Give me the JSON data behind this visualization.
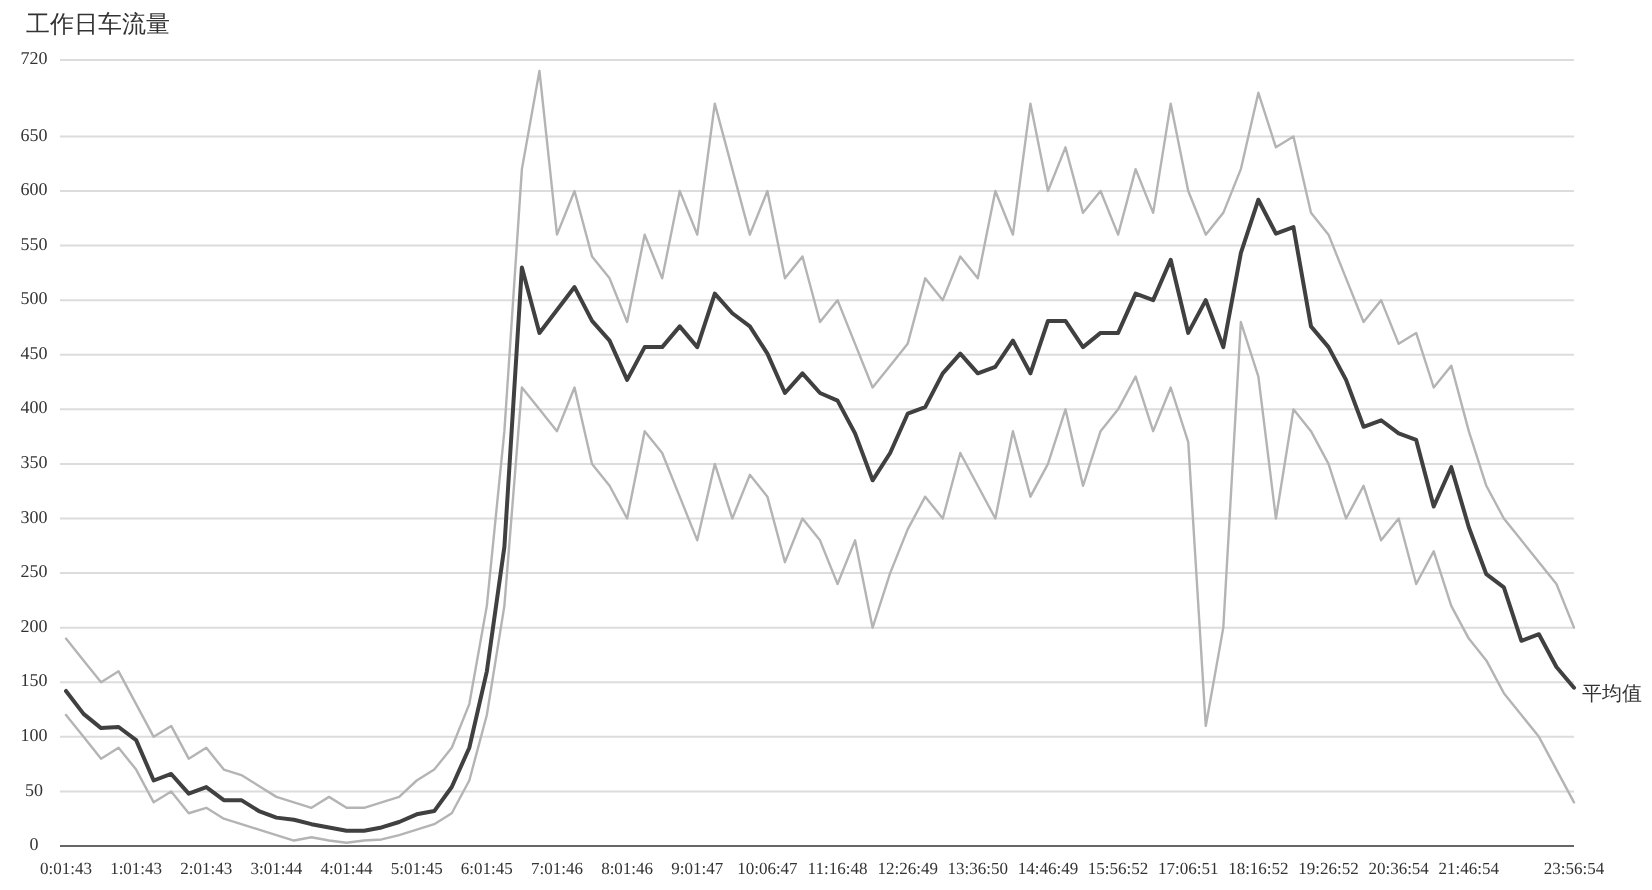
{
  "chart_data": {
    "type": "line",
    "ylabel": "工作日车流量",
    "ylim": [
      0,
      720
    ],
    "yticks": [
      0,
      50,
      100,
      150,
      200,
      250,
      300,
      350,
      400,
      450,
      500,
      550,
      600,
      650,
      720
    ],
    "grid": "y",
    "marker": "none",
    "line_style": "solid",
    "categories": [
      "0:01:43",
      null,
      null,
      null,
      "1:01:43",
      null,
      null,
      null,
      "2:01:43",
      null,
      null,
      null,
      "3:01:44",
      null,
      null,
      null,
      "4:01:44",
      null,
      null,
      null,
      "5:01:45",
      null,
      null,
      null,
      "6:01:45",
      null,
      null,
      null,
      "7:01:46",
      null,
      null,
      null,
      "8:01:46",
      null,
      null,
      null,
      "9:01:47",
      null,
      null,
      null,
      "10:06:47",
      null,
      null,
      null,
      "11:16:48",
      null,
      null,
      null,
      "12:26:49",
      null,
      null,
      null,
      "13:36:50",
      null,
      null,
      null,
      "14:46:49",
      null,
      null,
      null,
      "15:56:52",
      null,
      null,
      null,
      "17:06:51",
      null,
      null,
      null,
      "18:16:52",
      null,
      null,
      null,
      "19:26:52",
      null,
      null,
      null,
      "20:36:54",
      null,
      null,
      null,
      "21:46:54",
      null,
      null,
      null,
      null,
      null,
      "23:56:54"
    ],
    "series": [
      {
        "color": "#b4b4b4",
        "values": [
          190,
          170,
          150,
          160,
          130,
          100,
          110,
          80,
          90,
          70,
          65,
          55,
          45,
          40,
          35,
          45,
          35,
          35,
          40,
          45,
          60,
          70,
          90,
          130,
          220,
          380,
          620,
          710,
          560,
          600,
          540,
          520,
          480,
          560,
          520,
          600,
          560,
          680,
          620,
          560,
          600,
          520,
          540,
          480,
          500,
          460,
          420,
          440,
          460,
          520,
          500,
          540,
          520,
          600,
          560,
          680,
          600,
          640,
          580,
          600,
          560,
          620,
          580,
          680,
          600,
          560,
          580,
          620,
          690,
          640,
          650,
          580,
          560,
          520,
          480,
          500,
          460,
          470,
          420,
          440,
          380,
          330,
          300,
          280,
          260,
          240,
          200
        ]
      },
      {
        "color": "#b4b4b4",
        "values": [
          120,
          100,
          80,
          90,
          70,
          40,
          50,
          30,
          35,
          25,
          20,
          15,
          10,
          5,
          8,
          5,
          3,
          5,
          6,
          10,
          15,
          20,
          30,
          60,
          120,
          220,
          420,
          400,
          380,
          420,
          350,
          330,
          300,
          380,
          360,
          320,
          280,
          350,
          300,
          340,
          320,
          260,
          300,
          280,
          240,
          280,
          200,
          250,
          290,
          320,
          300,
          360,
          330,
          300,
          380,
          320,
          350,
          400,
          330,
          380,
          400,
          430,
          380,
          420,
          370,
          110,
          200,
          480,
          430,
          300,
          400,
          380,
          350,
          300,
          330,
          280,
          300,
          240,
          270,
          220,
          190,
          170,
          140,
          120,
          100,
          70,
          40
        ]
      },
      {
        "name": "平均值",
        "color": "#404040",
        "values": [
          142,
          121,
          108,
          109,
          97,
          60,
          66,
          48,
          54,
          42,
          42,
          32,
          26,
          24,
          20,
          17,
          14,
          14,
          17,
          22,
          29,
          32,
          54,
          90,
          160,
          274,
          530,
          470,
          491,
          512,
          481,
          463,
          427,
          457,
          457,
          476,
          457,
          506,
          488,
          476,
          451,
          415,
          433,
          415,
          408,
          378,
          335,
          360,
          396,
          402,
          433,
          451,
          433,
          439,
          463,
          433,
          481,
          481,
          457,
          470,
          470,
          506,
          500,
          537,
          470,
          500,
          457,
          543,
          592,
          561,
          567,
          476,
          457,
          427,
          384,
          390,
          378,
          372,
          311,
          347,
          292,
          249,
          237,
          188,
          194,
          164,
          145
        ]
      }
    ]
  }
}
